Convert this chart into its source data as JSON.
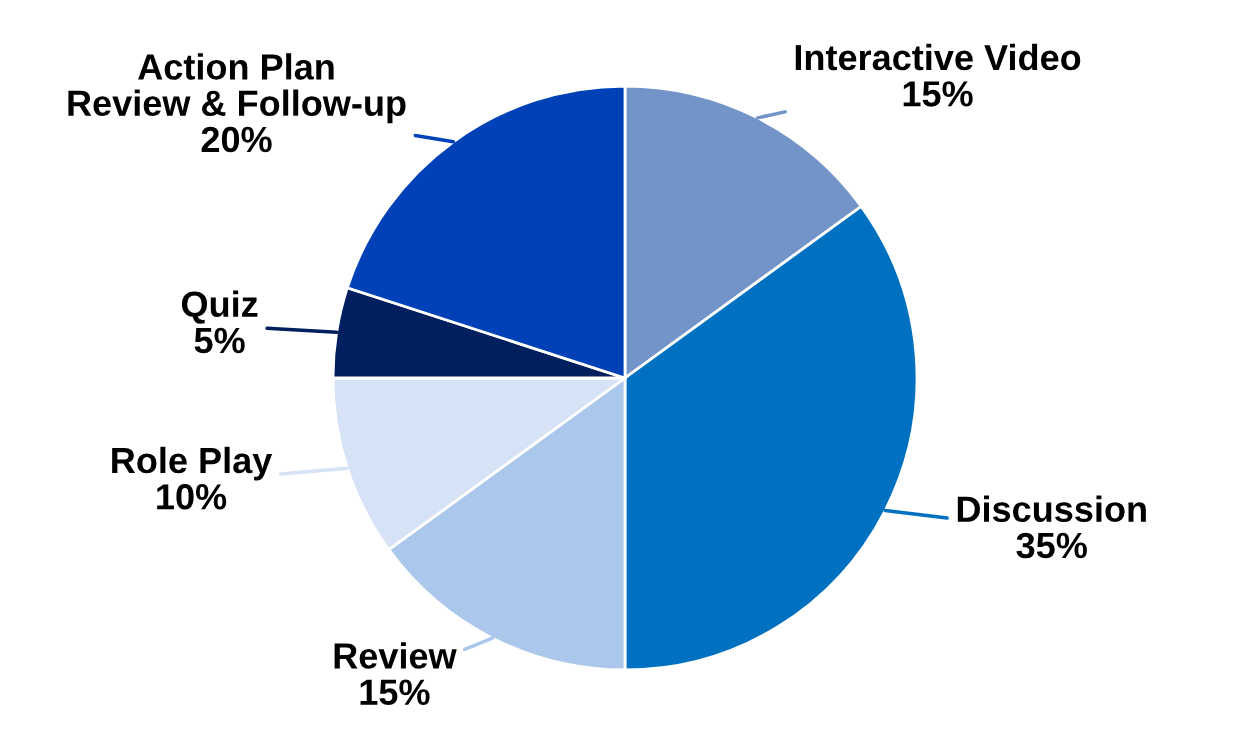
{
  "chart_data": {
    "type": "pie",
    "categories": [
      "Interactive Video",
      "Discussion",
      "Review",
      "Role Play",
      "Quiz",
      "Action Plan\nReview & Follow-up"
    ],
    "values": [
      15,
      35,
      15,
      10,
      5,
      20
    ],
    "colors": [
      "#7394c8",
      "#0070c0",
      "#abc8ec",
      "#d6e2f6",
      "#001f5f",
      "#0041b8"
    ],
    "value_labels": [
      "15%",
      "35%",
      "15%",
      "10%",
      "5%",
      "20%"
    ]
  }
}
